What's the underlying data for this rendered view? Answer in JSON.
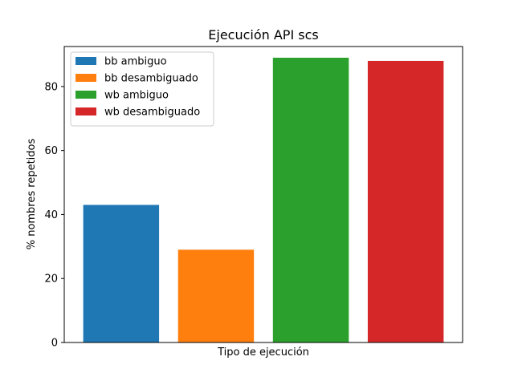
{
  "chart_data": {
    "type": "bar",
    "title": "Ejecución API scs",
    "xlabel": "Tipo de ejecución",
    "ylabel": "% nombres repetidos",
    "ylim": [
      0,
      92.5
    ],
    "yticks": [
      0,
      20,
      40,
      60,
      80
    ],
    "grid": false,
    "legend_position": "top-left",
    "series": [
      {
        "name": "bb ambiguo",
        "value": 43,
        "color": "#1f77b4"
      },
      {
        "name": "bb desambiguado",
        "value": 29,
        "color": "#ff7f0e"
      },
      {
        "name": "wb ambiguo",
        "value": 89,
        "color": "#2ca02c"
      },
      {
        "name": "wb desambiguado",
        "value": 88,
        "color": "#d62728"
      }
    ]
  }
}
